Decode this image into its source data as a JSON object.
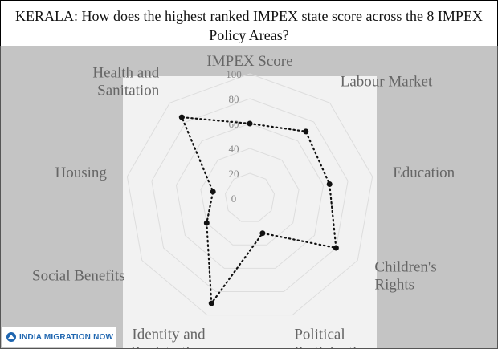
{
  "title": "KERALA: How does the highest ranked IMPEX state score across the 8 IMPEX Policy Areas?",
  "logo_text": "INDIA MIGRATION NOW",
  "colors": {
    "plot_background": "#c4c4c4",
    "chart_panel": "#f2f2f2",
    "grid": "#dddddd",
    "line": "#111111",
    "label": "#666666",
    "logo_blue": "#1f66b0"
  },
  "chart_data": {
    "type": "radar",
    "title": "KERALA: How does the highest ranked IMPEX state score across the 8 IMPEX Policy Areas?",
    "axes": [
      {
        "label": "IMPEX Score",
        "value": 60
      },
      {
        "label": "Labour Market",
        "value": 70
      },
      {
        "label": "Education",
        "value": 65
      },
      {
        "label": "Children's Rights",
        "value": 80
      },
      {
        "label": "Political Participation",
        "value": 30
      },
      {
        "label": "Identity and Registration",
        "value": 90
      },
      {
        "label": "Social Benefits",
        "value": 40
      },
      {
        "label": "Housing",
        "value": 30
      },
      {
        "label": "Health and Sanitation",
        "value": 85
      }
    ],
    "axis_display_lines": [
      [
        "IMPEX Score"
      ],
      [
        "Labour Market"
      ],
      [
        "Education"
      ],
      [
        "Children's",
        "Rights"
      ],
      [
        "Political",
        "Participation"
      ],
      [
        "Identity and",
        "Registration"
      ],
      [
        "Social Benefits"
      ],
      [
        "Housing"
      ],
      [
        "Health and",
        "Sanitation"
      ]
    ],
    "ticks": [
      0,
      20,
      40,
      60,
      80,
      100
    ],
    "range": [
      0,
      100
    ],
    "line_style": "dotted",
    "grid": true,
    "legend": "none"
  }
}
